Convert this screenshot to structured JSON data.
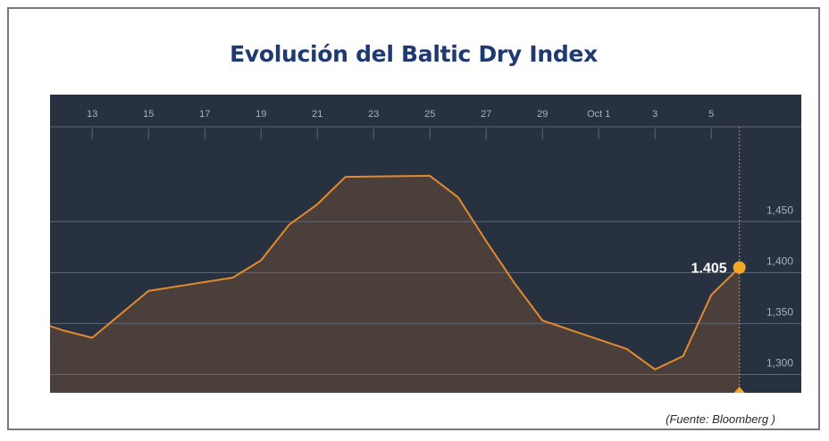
{
  "title": "Evolución del Baltic Dry Index",
  "source": "(Fuente: Bloomberg )",
  "colors": {
    "background": "#283140",
    "line": "#e38a2f",
    "area": "#4a3f3a",
    "marker": "#f5a623",
    "grid": "#5f6773",
    "tick_text": "#a9b0ba",
    "title": "#1f3a6e"
  },
  "chart_data": {
    "type": "area",
    "x_tick_labels": [
      "13",
      "15",
      "17",
      "19",
      "21",
      "23",
      "25",
      "27",
      "29",
      "Oct 1",
      "3",
      "5"
    ],
    "y_tick_labels": [
      "1,450",
      "1,400",
      "1,350",
      "1,300"
    ],
    "y_ticks": [
      1450,
      1400,
      1350,
      1300
    ],
    "ylim": [
      1282,
      1452
    ],
    "x_tick_days": [
      13,
      15,
      17,
      19,
      21,
      23,
      25,
      27,
      29,
      31,
      33,
      35
    ],
    "xlim": [
      11.5,
      38.2
    ],
    "series": [
      {
        "points": [
          {
            "x": "Sep 11",
            "y": 1352
          },
          {
            "x": "Sep 12",
            "y": 1343
          },
          {
            "x": "Sep 13",
            "y": 1336
          },
          {
            "x": "Sep 15",
            "y": 1382
          },
          {
            "x": "Sep 18",
            "y": 1395
          },
          {
            "x": "Sep 19",
            "y": 1412
          },
          {
            "x": "Sep 20",
            "y": 1447
          },
          {
            "x": "Sep 21",
            "y": 1467
          },
          {
            "x": "Sep 22",
            "y": 1494
          },
          {
            "x": "Sep 25",
            "y": 1495
          },
          {
            "x": "Sep 26",
            "y": 1474
          },
          {
            "x": "Sep 27",
            "y": 1431
          },
          {
            "x": "Sep 28",
            "y": 1390
          },
          {
            "x": "Sep 29",
            "y": 1353
          },
          {
            "x": "Oct 2",
            "y": 1325
          },
          {
            "x": "Oct 3",
            "y": 1305
          },
          {
            "x": "Oct 4",
            "y": 1318
          },
          {
            "x": "Oct 5",
            "y": 1378
          },
          {
            "x": "Oct 6",
            "y": 1405
          }
        ]
      }
    ],
    "highlight": {
      "x": "Oct 6",
      "y": 1405,
      "label": "1.405"
    },
    "grid": true
  }
}
